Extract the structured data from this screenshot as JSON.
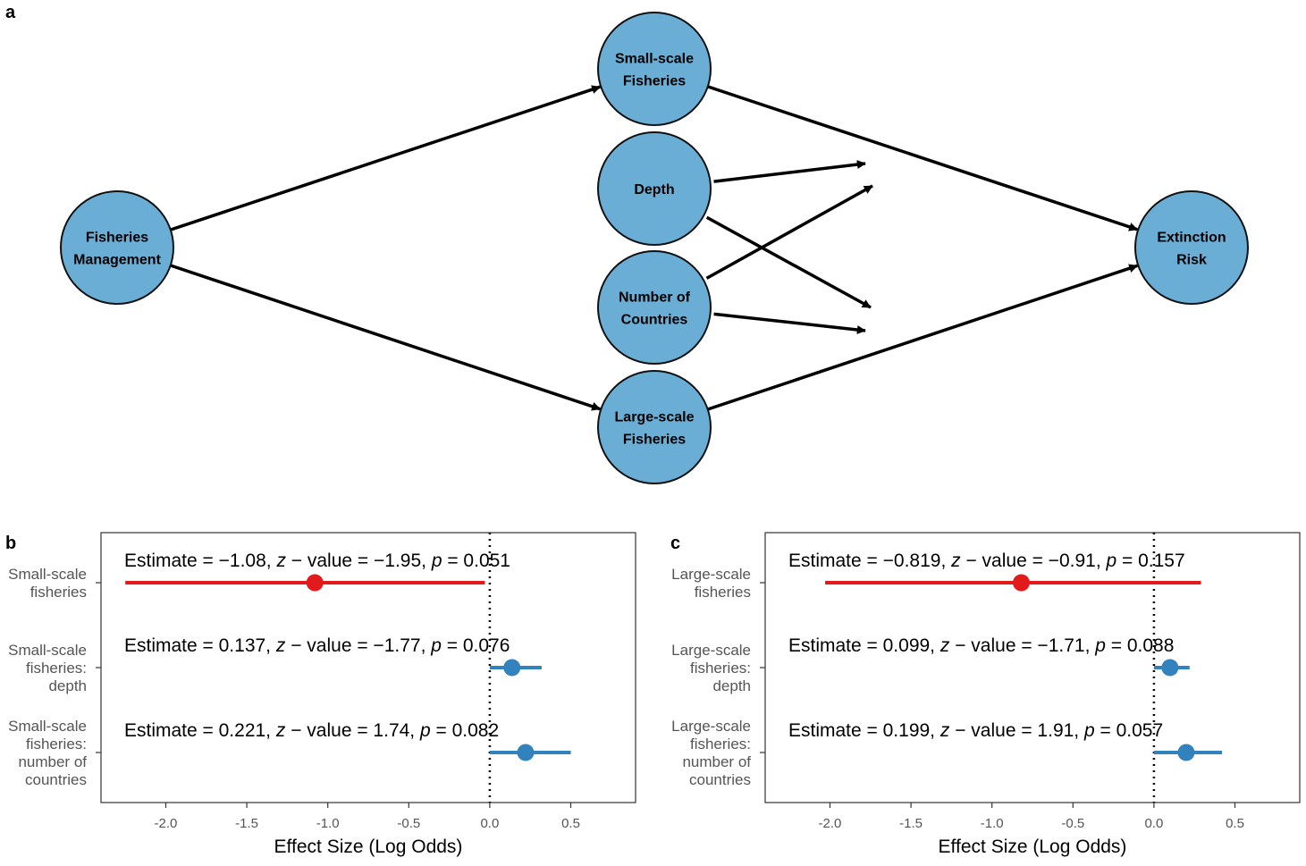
{
  "panel_a": {
    "letter": "a",
    "nodes": [
      {
        "id": "fm",
        "lines": [
          "Fisheries",
          "Management"
        ]
      },
      {
        "id": "ssf",
        "lines": [
          "Small-scale",
          "Fisheries"
        ]
      },
      {
        "id": "depth",
        "lines": [
          "Depth"
        ]
      },
      {
        "id": "noc",
        "lines": [
          "Number of",
          "Countries"
        ]
      },
      {
        "id": "lsf",
        "lines": [
          "Large-scale",
          "Fisheries"
        ]
      },
      {
        "id": "er",
        "lines": [
          "Extinction",
          "Risk"
        ]
      }
    ],
    "node_color": "#6aaed6"
  },
  "chart_data": [
    {
      "panel": "b",
      "type": "scatter",
      "xlabel": "Effect Size (Log Odds)",
      "xlim": [
        -2.4,
        0.9
      ],
      "xticks": [
        -2.0,
        -1.5,
        -1.0,
        -0.5,
        0.0,
        0.5
      ],
      "xtick_labels": [
        "-2.0",
        "-1.5",
        "-1.0",
        "-0.5",
        "0.0",
        "0.5"
      ],
      "reference_line": 0.0,
      "rows": [
        {
          "label": [
            "Small-scale",
            "fisheries"
          ],
          "estimate": -1.08,
          "ci": [
            -2.25,
            -0.03
          ],
          "color": "#e31a1c",
          "annotation": {
            "est": "−1.08",
            "z": "−1.95",
            "p": "0.051"
          }
        },
        {
          "label": [
            "Small-scale",
            "fisheries:",
            "depth"
          ],
          "estimate": 0.137,
          "ci": [
            0.0,
            0.32
          ],
          "color": "#3182bd",
          "annotation": {
            "est": "0.137",
            "z": "−1.77",
            "p": "0.076"
          }
        },
        {
          "label": [
            "Small-scale",
            "fisheries:",
            "number of",
            "countries"
          ],
          "estimate": 0.221,
          "ci": [
            0.0,
            0.5
          ],
          "color": "#3182bd",
          "annotation": {
            "est": "0.221",
            "z": "1.74",
            "p": "0.082"
          }
        }
      ]
    },
    {
      "panel": "c",
      "type": "scatter",
      "xlabel": "Effect Size (Log Odds)",
      "xlim": [
        -2.4,
        0.9
      ],
      "xticks": [
        -2.0,
        -1.5,
        -1.0,
        -0.5,
        0.0,
        0.5
      ],
      "xtick_labels": [
        "-2.0",
        "-1.5",
        "-1.0",
        "-0.5",
        "0.0",
        "0.5"
      ],
      "reference_line": 0.0,
      "rows": [
        {
          "label": [
            "Large-scale",
            "fisheries"
          ],
          "estimate": -0.819,
          "ci": [
            -2.03,
            0.29
          ],
          "color": "#e31a1c",
          "annotation": {
            "est": "−0.819",
            "z": "−0.91",
            "p": "0.157"
          }
        },
        {
          "label": [
            "Large-scale",
            "fisheries:",
            "depth"
          ],
          "estimate": 0.099,
          "ci": [
            0.0,
            0.22
          ],
          "color": "#3182bd",
          "annotation": {
            "est": "0.099",
            "z": "−1.71",
            "p": "0.088"
          }
        },
        {
          "label": [
            "Large-scale",
            "fisheries:",
            "number of",
            "countries"
          ],
          "estimate": 0.199,
          "ci": [
            0.0,
            0.42
          ],
          "color": "#3182bd",
          "annotation": {
            "est": "0.199",
            "z": "1.91",
            "p": "0.057"
          }
        }
      ]
    }
  ],
  "annotation_words": {
    "estimate": "Estimate",
    "z": "z",
    "value": "value",
    "p": "p",
    "eq": "=",
    "minus": "−"
  }
}
